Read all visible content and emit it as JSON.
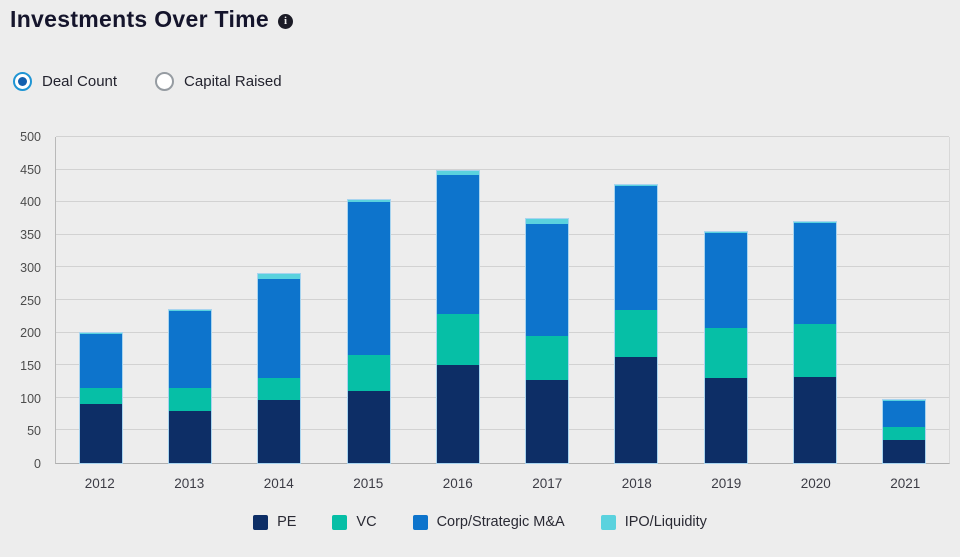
{
  "header": {
    "title": "Investments Over Time"
  },
  "controls": {
    "options": [
      {
        "label": "Deal Count",
        "selected": true
      },
      {
        "label": "Capital Raised",
        "selected": false
      }
    ]
  },
  "chart_data": {
    "type": "bar",
    "stacked": true,
    "title": "Investments Over Time",
    "xlabel": "",
    "ylabel": "",
    "ylim": [
      0,
      500
    ],
    "yticks": [
      0,
      50,
      100,
      150,
      200,
      250,
      300,
      350,
      400,
      450,
      500
    ],
    "grid": true,
    "legend_position": "bottom",
    "categories": [
      "2012",
      "2013",
      "2014",
      "2015",
      "2016",
      "2017",
      "2018",
      "2019",
      "2020",
      "2021"
    ],
    "series": [
      {
        "name": "PE",
        "color": "#0d2e66",
        "values": [
          90,
          80,
          97,
          110,
          150,
          128,
          163,
          130,
          132,
          35
        ]
      },
      {
        "name": "VC",
        "color": "#06bfa6",
        "values": [
          25,
          35,
          33,
          55,
          78,
          67,
          72,
          77,
          81,
          20
        ]
      },
      {
        "name": "Corp/Strategic M&A",
        "color": "#0d74cc",
        "values": [
          83,
          118,
          152,
          235,
          214,
          172,
          190,
          146,
          155,
          40
        ]
      },
      {
        "name": "IPO/Liquidity",
        "color": "#5ad2de",
        "values": [
          2,
          2,
          8,
          3,
          6,
          8,
          2,
          2,
          2,
          2
        ]
      }
    ],
    "totals": [
      200,
      235,
      290,
      403,
      448,
      375,
      427,
      355,
      370,
      97
    ]
  },
  "colors": {
    "background": "#ededed",
    "bar_border": "#a8d4ef",
    "gridline": "#d2d2d2",
    "accent_radio": "#1f95d4"
  }
}
